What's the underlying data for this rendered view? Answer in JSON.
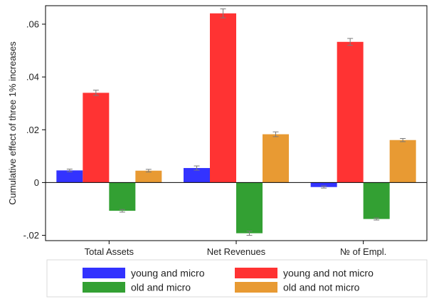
{
  "chart_data": {
    "type": "bar",
    "title": "",
    "xlabel": "",
    "ylabel": "Cumulative effect of three 1% increases",
    "categories": [
      "Total Assets",
      "Net Revenues",
      "№ of Empl."
    ],
    "ylim": [
      -0.022,
      0.067
    ],
    "yticks": [
      -0.02,
      0,
      0.02,
      0.04,
      0.06
    ],
    "ytick_labels": [
      "-.02",
      "0",
      ".02",
      ".04",
      ".06"
    ],
    "grid": false,
    "legend_position": "bottom",
    "error_bars": true,
    "series": [
      {
        "name": "young and micro",
        "color": "#3333ff",
        "values": [
          0.0046,
          0.0055,
          -0.0017
        ],
        "errors": [
          0.0005,
          0.0008,
          0.0004
        ]
      },
      {
        "name": "young and not micro",
        "color": "#ff3333",
        "values": [
          0.034,
          0.0641,
          0.0533
        ],
        "errors": [
          0.001,
          0.0017,
          0.0013
        ]
      },
      {
        "name": "old and micro",
        "color": "#33a033",
        "values": [
          -0.0107,
          -0.0192,
          -0.0138
        ],
        "errors": [
          0.0005,
          0.0008,
          0.0004
        ]
      },
      {
        "name": "old and not micro",
        "color": "#e89a33",
        "values": [
          0.0045,
          0.0183,
          0.0161
        ],
        "errors": [
          0.0005,
          0.0009,
          0.0006
        ]
      }
    ]
  }
}
